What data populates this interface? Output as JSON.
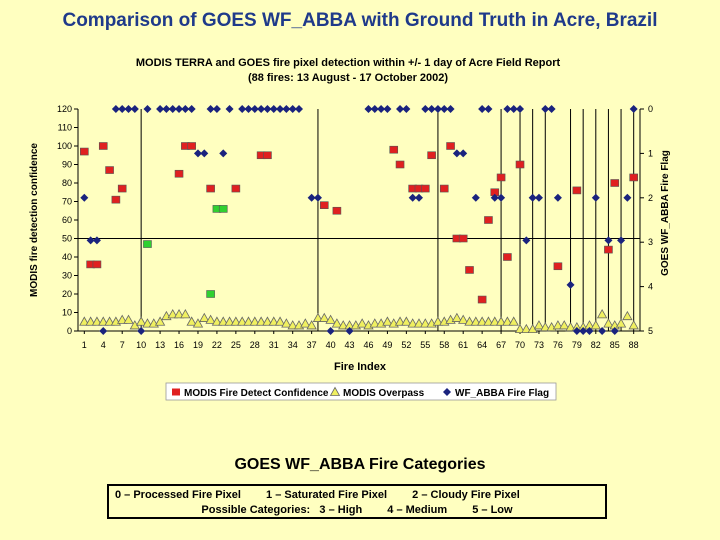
{
  "slide": {
    "title": "Comparison of GOES WF_ABBA with Ground Truth in Acre, Brazil",
    "title_color": "#1f3a8a",
    "background": "#ffffc0"
  },
  "categories_box": {
    "title": "GOES WF_ABBA Fire Categories",
    "line1": [
      "0 – Processed Fire Pixel",
      "1 – Saturated Fire Pixel",
      "2 – Cloudy Fire Pixel"
    ],
    "line2": [
      "Possible Categories:",
      "3 – High",
      "4 – Medium",
      "5 – Low"
    ]
  },
  "chart_data": {
    "type": "scatter",
    "title": "MODIS TERRA and GOES fire pixel detection within  +/- 1 day of Acre Field Report",
    "subtitle": "(88 fires: 13 August - 17 October 2002)",
    "xlabel": "Fire Index",
    "ylabel": "MODIS fire detection confidence",
    "y2label": "GOES WF_ABBA Fire Flag",
    "xlim": [
      0,
      89
    ],
    "ylim": [
      0,
      120
    ],
    "y2lim": [
      0,
      5
    ],
    "y2_inverted": true,
    "x_ticks": [
      1,
      4,
      7,
      10,
      13,
      16,
      19,
      22,
      25,
      28,
      31,
      34,
      37,
      40,
      43,
      46,
      49,
      52,
      55,
      58,
      61,
      64,
      67,
      70,
      73,
      76,
      79,
      82,
      85,
      88
    ],
    "y_ticks": [
      0,
      10,
      20,
      30,
      40,
      50,
      60,
      70,
      80,
      90,
      100,
      110,
      120
    ],
    "y2_ticks": [
      0,
      1,
      2,
      3,
      4,
      5
    ],
    "horizontal_line": 50,
    "vertical_lines": [
      10,
      38,
      57,
      67,
      70,
      72,
      74,
      78,
      80,
      82,
      84,
      86,
      88
    ],
    "colors": {
      "modis": "#e02020",
      "modis_green": "#30d030",
      "overpass": "#f0f060",
      "goes": "#1a237e",
      "grid": "#000000"
    },
    "series": [
      {
        "name": "MODIS Fire Detect Confidence",
        "marker": "square",
        "points": [
          [
            1,
            97
          ],
          [
            2,
            36
          ],
          [
            3,
            36
          ],
          [
            4,
            100
          ],
          [
            5,
            87
          ],
          [
            6,
            71
          ],
          [
            7,
            77
          ],
          [
            11,
            47
          ],
          [
            16,
            85
          ],
          [
            17,
            100
          ],
          [
            18,
            100
          ],
          [
            21,
            20
          ],
          [
            21,
            77
          ],
          [
            22,
            66
          ],
          [
            23,
            66
          ],
          [
            25,
            77
          ],
          [
            29,
            95
          ],
          [
            30,
            95
          ],
          [
            39,
            68
          ],
          [
            41,
            65
          ],
          [
            50,
            98
          ],
          [
            51,
            90
          ],
          [
            53,
            77
          ],
          [
            54,
            77
          ],
          [
            55,
            77
          ],
          [
            56,
            95
          ],
          [
            58,
            77
          ],
          [
            59,
            100
          ],
          [
            60,
            50
          ],
          [
            61,
            50
          ],
          [
            62,
            33
          ],
          [
            64,
            17
          ],
          [
            65,
            60
          ],
          [
            66,
            75
          ],
          [
            67,
            83
          ],
          [
            68,
            40
          ],
          [
            70,
            90
          ],
          [
            76,
            35
          ],
          [
            79,
            76
          ],
          [
            84,
            44
          ],
          [
            85,
            80
          ],
          [
            88,
            83
          ]
        ]
      },
      {
        "name": "MODIS Overpass",
        "marker": "triangle",
        "points": [
          [
            1,
            5
          ],
          [
            2,
            5
          ],
          [
            3,
            5
          ],
          [
            4,
            5
          ],
          [
            5,
            5
          ],
          [
            6,
            5
          ],
          [
            7,
            6
          ],
          [
            8,
            6
          ],
          [
            9,
            3
          ],
          [
            10,
            5
          ],
          [
            11,
            4
          ],
          [
            12,
            4
          ],
          [
            13,
            5
          ],
          [
            14,
            8
          ],
          [
            15,
            9
          ],
          [
            16,
            9
          ],
          [
            17,
            9
          ],
          [
            18,
            5
          ],
          [
            19,
            4
          ],
          [
            20,
            7
          ],
          [
            21,
            6
          ],
          [
            22,
            5
          ],
          [
            23,
            5
          ],
          [
            24,
            5
          ],
          [
            25,
            5
          ],
          [
            26,
            5
          ],
          [
            27,
            5
          ],
          [
            28,
            5
          ],
          [
            29,
            5
          ],
          [
            30,
            5
          ],
          [
            31,
            5
          ],
          [
            32,
            5
          ],
          [
            33,
            4
          ],
          [
            34,
            3
          ],
          [
            35,
            3
          ],
          [
            36,
            4
          ],
          [
            37,
            3
          ],
          [
            38,
            7
          ],
          [
            39,
            7
          ],
          [
            40,
            6
          ],
          [
            41,
            4
          ],
          [
            42,
            3
          ],
          [
            43,
            3
          ],
          [
            44,
            3
          ],
          [
            45,
            4
          ],
          [
            46,
            3
          ],
          [
            47,
            4
          ],
          [
            48,
            4
          ],
          [
            49,
            5
          ],
          [
            50,
            4
          ],
          [
            51,
            5
          ],
          [
            52,
            5
          ],
          [
            53,
            4
          ],
          [
            54,
            4
          ],
          [
            55,
            4
          ],
          [
            56,
            4
          ],
          [
            57,
            5
          ],
          [
            58,
            5
          ],
          [
            59,
            6
          ],
          [
            60,
            7
          ],
          [
            61,
            6
          ],
          [
            62,
            5
          ],
          [
            63,
            5
          ],
          [
            64,
            5
          ],
          [
            65,
            5
          ],
          [
            66,
            5
          ],
          [
            67,
            5
          ],
          [
            68,
            5
          ],
          [
            69,
            5
          ],
          [
            70,
            1
          ],
          [
            71,
            1
          ],
          [
            72,
            1
          ],
          [
            73,
            3
          ],
          [
            74,
            2
          ],
          [
            75,
            2
          ],
          [
            76,
            3
          ],
          [
            77,
            3
          ],
          [
            78,
            2
          ],
          [
            79,
            2
          ],
          [
            80,
            2
          ],
          [
            81,
            3
          ],
          [
            82,
            3
          ],
          [
            83,
            9
          ],
          [
            84,
            4
          ],
          [
            85,
            3
          ],
          [
            86,
            4
          ],
          [
            87,
            8
          ],
          [
            88,
            3
          ]
        ]
      },
      {
        "name": "WF_ABBA Fire Flag",
        "marker": "diamond",
        "axis": "y2",
        "points": [
          [
            1,
            2
          ],
          [
            2,
            2.96
          ],
          [
            3,
            2.96
          ],
          [
            4,
            5
          ],
          [
            6,
            0
          ],
          [
            7,
            0
          ],
          [
            8,
            0
          ],
          [
            9,
            0
          ],
          [
            10,
            5
          ],
          [
            11,
            0
          ],
          [
            13,
            0
          ],
          [
            14,
            0
          ],
          [
            15,
            0
          ],
          [
            16,
            0
          ],
          [
            17,
            0
          ],
          [
            18,
            0
          ],
          [
            19,
            1
          ],
          [
            20,
            1
          ],
          [
            21,
            0
          ],
          [
            22,
            0
          ],
          [
            23,
            1
          ],
          [
            24,
            0
          ],
          [
            26,
            0
          ],
          [
            27,
            0
          ],
          [
            28,
            0
          ],
          [
            29,
            0
          ],
          [
            30,
            0
          ],
          [
            31,
            0
          ],
          [
            32,
            0
          ],
          [
            33,
            0
          ],
          [
            34,
            0
          ],
          [
            35,
            0
          ],
          [
            37,
            2
          ],
          [
            38,
            2
          ],
          [
            40,
            5
          ],
          [
            43,
            5
          ],
          [
            46,
            0
          ],
          [
            47,
            0
          ],
          [
            48,
            0
          ],
          [
            49,
            0
          ],
          [
            51,
            0
          ],
          [
            52,
            0
          ],
          [
            53,
            2
          ],
          [
            54,
            2
          ],
          [
            55,
            0
          ],
          [
            56,
            0
          ],
          [
            57,
            0
          ],
          [
            58,
            0
          ],
          [
            59,
            0
          ],
          [
            60,
            1
          ],
          [
            61,
            1
          ],
          [
            63,
            2
          ],
          [
            64,
            0
          ],
          [
            65,
            0
          ],
          [
            66,
            2
          ],
          [
            67,
            2
          ],
          [
            68,
            0
          ],
          [
            69,
            0
          ],
          [
            70,
            0
          ],
          [
            71,
            2.96
          ],
          [
            72,
            2
          ],
          [
            73,
            2
          ],
          [
            74,
            0
          ],
          [
            75,
            0
          ],
          [
            76,
            2
          ],
          [
            78,
            3.96
          ],
          [
            79,
            5
          ],
          [
            80,
            5
          ],
          [
            81,
            5
          ],
          [
            82,
            2
          ],
          [
            83,
            5
          ],
          [
            84,
            2.96
          ],
          [
            85,
            5
          ],
          [
            86,
            2.96
          ],
          [
            87,
            2
          ],
          [
            88,
            0
          ]
        ]
      }
    ],
    "legend": [
      "MODIS Fire Detect Confidence",
      "MODIS Overpass",
      "WF_ABBA Fire Flag"
    ],
    "legend_position": "bottom"
  }
}
